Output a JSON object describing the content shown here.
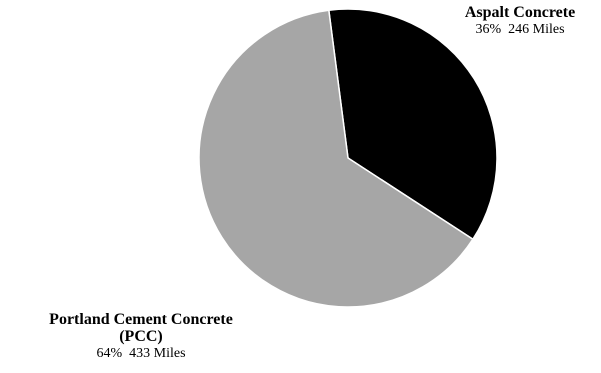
{
  "chart_data": {
    "type": "pie",
    "title": "",
    "slices": [
      {
        "name": "Aspalt Concrete",
        "percent_label": "36%",
        "miles_label": "246 Miles",
        "value": 246,
        "color": "#000000"
      },
      {
        "name_line1": "Portland Cement Concrete",
        "name_line2": "(PCC)",
        "percent_label": "64%",
        "miles_label": "433 Miles",
        "value": 433,
        "color": "#a6a6a6"
      }
    ]
  }
}
